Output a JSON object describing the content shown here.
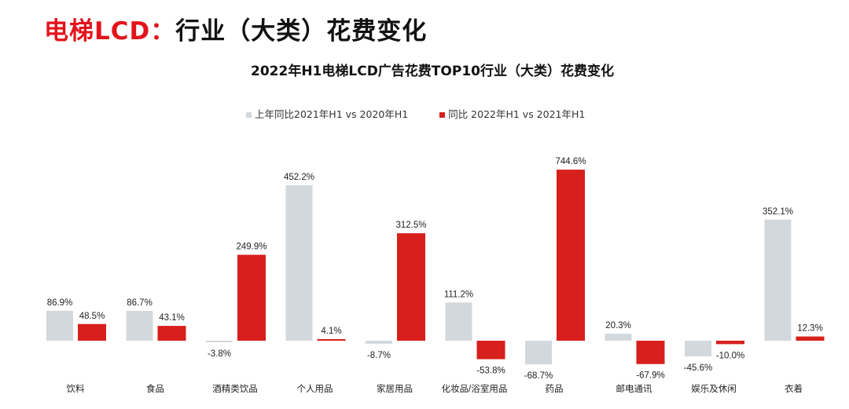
{
  "page_title": {
    "red": "电梯LCD：",
    "black": "行业（大类）花费变化"
  },
  "chart_data": {
    "type": "bar",
    "title": "2022年H1电梯LCD广告花费TOP10行业（大类）花费变化",
    "categories": [
      "饮料",
      "食品",
      "酒精类饮品",
      "个人用品",
      "家居用品",
      "化妆品/浴室用品",
      "药品",
      "邮电通讯",
      "娱乐及休闲",
      "衣着"
    ],
    "series": [
      {
        "name": "上年同比2021年H1 vs 2020年H1",
        "color": "#d3d8dc",
        "values": [
          86.9,
          86.7,
          -3.8,
          452.2,
          -8.7,
          111.2,
          -68.7,
          20.3,
          -45.6,
          352.1
        ],
        "labels": [
          "86.9%",
          "86.7%",
          "-3.8%",
          "452.2%",
          "-8.7%",
          "111.2%",
          "-68.7%",
          "20.3%",
          "-45.6%",
          "352.1%"
        ]
      },
      {
        "name": "同比 2022年H1 vs 2021年H1",
        "color": "#d7201b",
        "values": [
          48.5,
          43.1,
          249.9,
          4.1,
          312.5,
          -53.8,
          744.6,
          -67.9,
          -10.0,
          12.3
        ],
        "labels": [
          "48.5%",
          "43.1%",
          "249.9%",
          "4.1%",
          "312.5%",
          "-53.8%",
          "744.6%",
          "-67.9%",
          "-10.0%",
          "12.3%"
        ]
      }
    ],
    "legend": "top",
    "grid": false
  }
}
